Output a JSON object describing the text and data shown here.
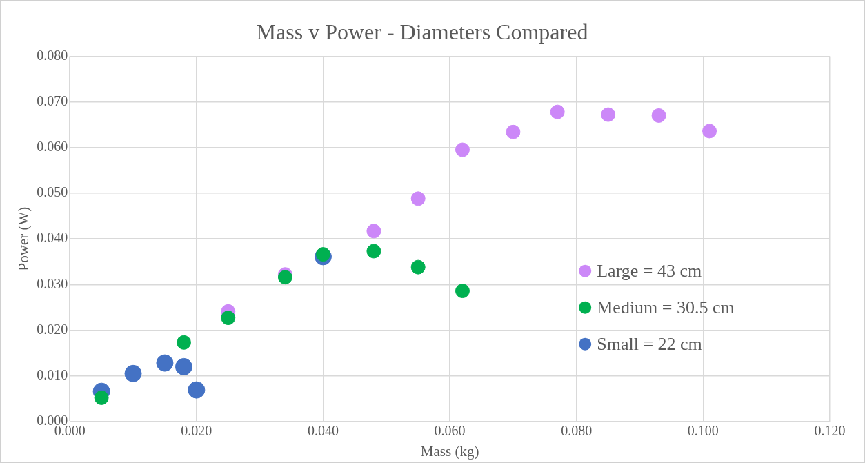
{
  "chart_data": {
    "type": "scatter",
    "title": "Mass v Power - Diameters Compared",
    "xlabel": "Mass (kg)",
    "ylabel": "Power (W)",
    "xlim": [
      0,
      0.12
    ],
    "xticks": [
      {
        "value": 0,
        "label": "0.000"
      },
      {
        "value": 0.02,
        "label": "0.020"
      },
      {
        "value": 0.04,
        "label": "0.040"
      },
      {
        "value": 0.06,
        "label": "0.060"
      },
      {
        "value": 0.08,
        "label": "0.080"
      },
      {
        "value": 0.1,
        "label": "0.100"
      },
      {
        "value": 0.12,
        "label": "0.120"
      }
    ],
    "ylim": [
      0,
      0.08
    ],
    "yticks": [
      {
        "value": 0,
        "label": "0.000"
      },
      {
        "value": 0.01,
        "label": "0.010"
      },
      {
        "value": 0.02,
        "label": "0.020"
      },
      {
        "value": 0.03,
        "label": "0.030"
      },
      {
        "value": 0.04,
        "label": "0.040"
      },
      {
        "value": 0.05,
        "label": "0.050"
      },
      {
        "value": 0.06,
        "label": "0.060"
      },
      {
        "value": 0.07,
        "label": "0.070"
      },
      {
        "value": 0.08,
        "label": "0.080"
      }
    ],
    "grid": true,
    "legend": "right",
    "marker": "circle",
    "series": [
      {
        "name": "Large = 43 cm",
        "color": "#cc88f8",
        "x": [
          0.025,
          0.034,
          0.048,
          0.055,
          0.062,
          0.07,
          0.077,
          0.085,
          0.093,
          0.101
        ],
        "values": [
          0.0241,
          0.0322,
          0.0417,
          0.0488,
          0.0595,
          0.0634,
          0.0678,
          0.0672,
          0.067,
          0.0636
        ]
      },
      {
        "name": "Medium = 30.5 cm",
        "color": "#00b050",
        "x": [
          0.005,
          0.018,
          0.025,
          0.034,
          0.04,
          0.048,
          0.055,
          0.062
        ],
        "values": [
          0.0052,
          0.0173,
          0.0227,
          0.0316,
          0.0366,
          0.0373,
          0.0338,
          0.0286
        ]
      },
      {
        "name": "Small = 22 cm",
        "color": "#4472c4",
        "x": [
          0.005,
          0.01,
          0.015,
          0.018,
          0.02,
          0.04
        ],
        "values": [
          0.0066,
          0.0105,
          0.0128,
          0.012,
          0.0069,
          0.0361
        ]
      }
    ]
  }
}
